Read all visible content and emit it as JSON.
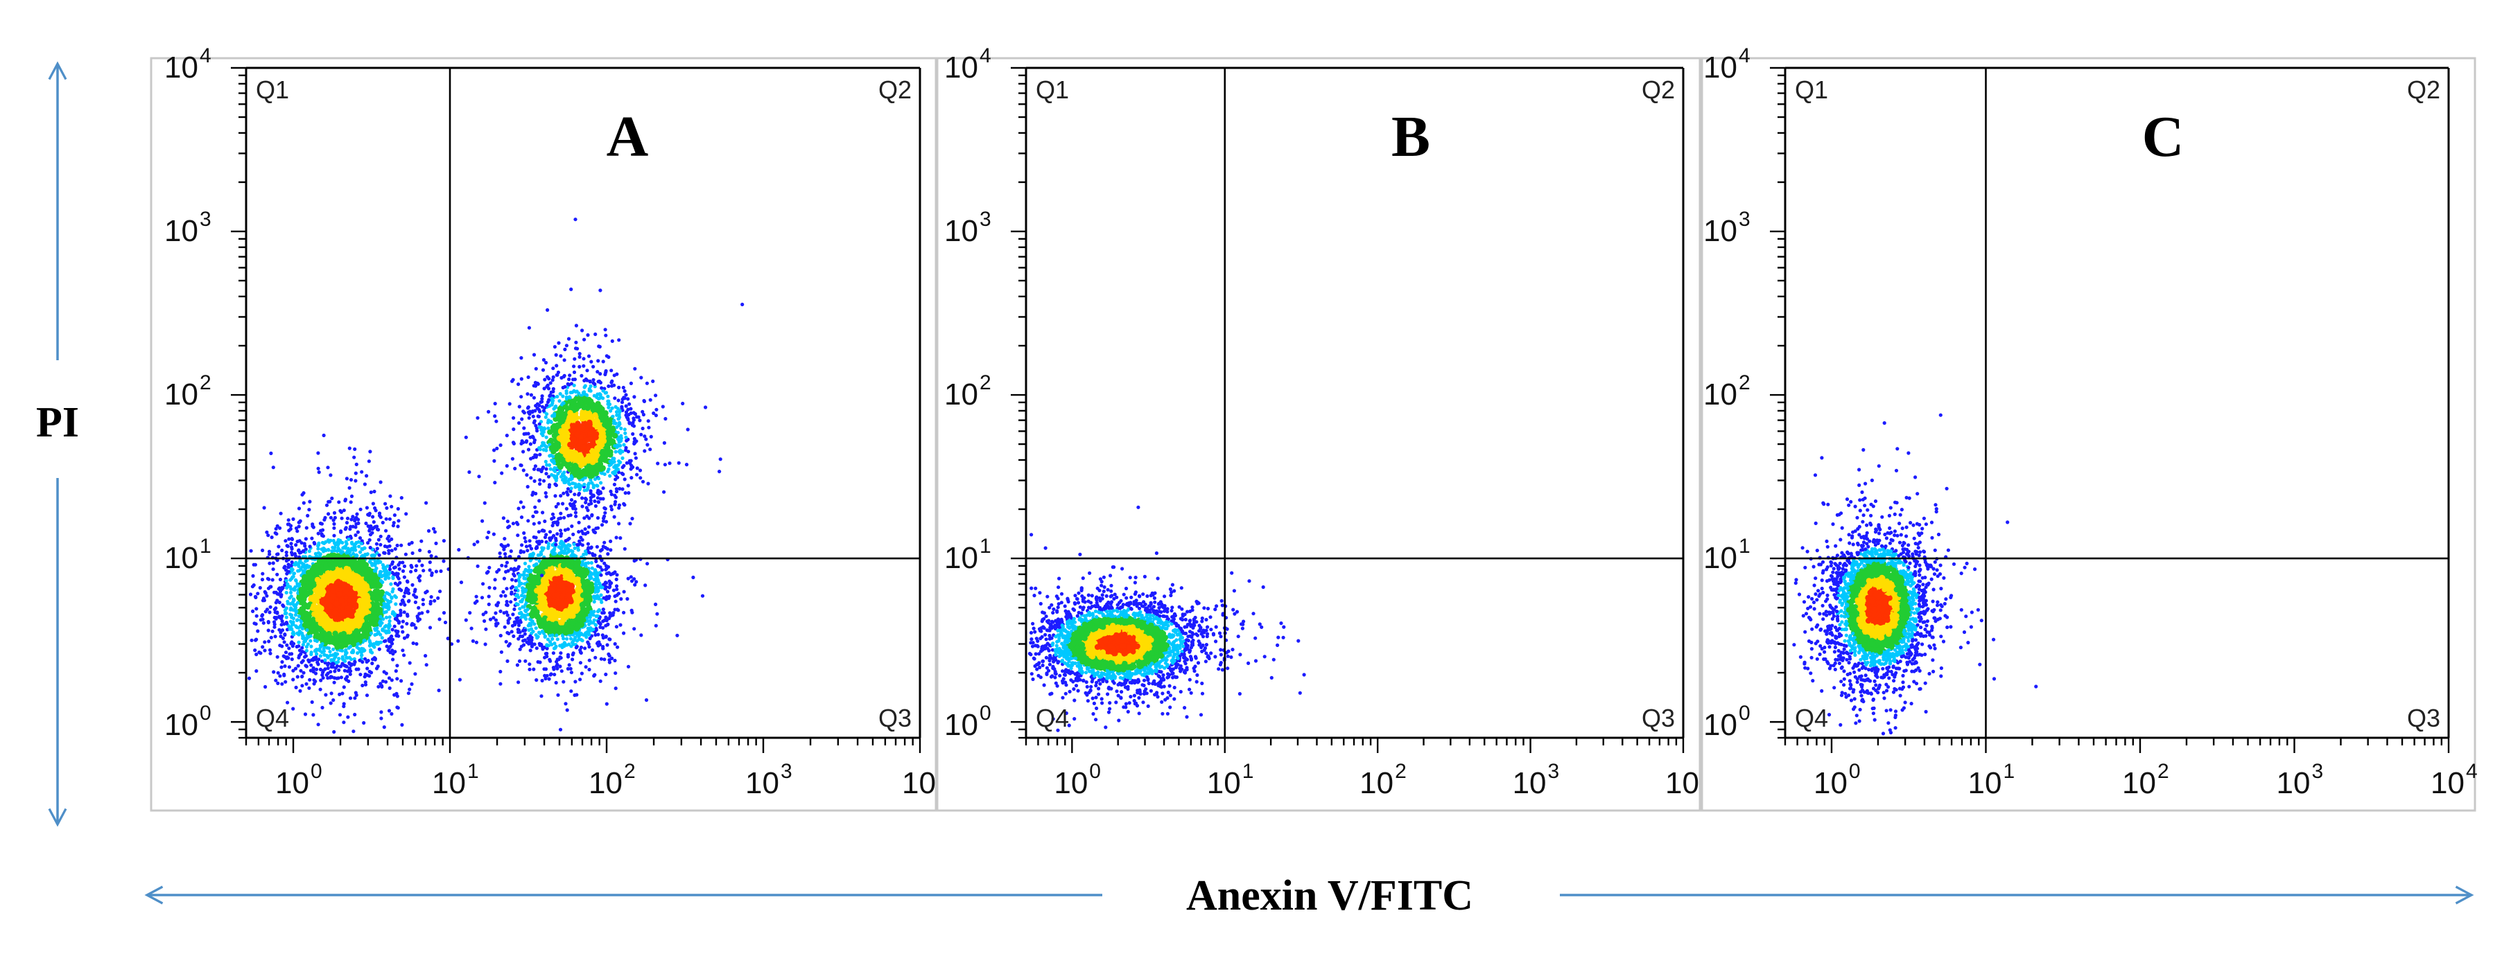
{
  "colors": {
    "arrow": "#4f8fc8",
    "axis": "#000000",
    "frame": "#c8c8c8",
    "density_low": "#1c1cff",
    "density_mid": "#00c8ff",
    "density_midhigh": "#22cc33",
    "density_high": "#ffdd00",
    "density_peak": "#ff3300"
  },
  "labels": {
    "y_title": "PI",
    "x_title": "Anexin V/FITC",
    "tick_base": "10",
    "tick_exponents": [
      "0",
      "1",
      "2",
      "3",
      "4"
    ],
    "quadrants": [
      "Q1",
      "Q2",
      "Q3",
      "Q4"
    ]
  },
  "chart_data": [
    {
      "type": "scatter",
      "panel": "A",
      "xlabel": "Anexin V/FITC",
      "ylabel": "PI",
      "scale": "log",
      "xlim": [
        0.5,
        10000
      ],
      "ylim": [
        0.8,
        10000
      ],
      "quadrant_gate": {
        "x": 10,
        "y": 10
      },
      "populations": [
        {
          "center": [
            2,
            5.5
          ],
          "spread_decades": [
            0.22,
            0.23
          ],
          "count": 2600
        },
        {
          "center": [
            50,
            6
          ],
          "spread_decades": [
            0.17,
            0.2
          ],
          "count": 1700
        },
        {
          "center": [
            70,
            55
          ],
          "spread_decades": [
            0.17,
            0.2
          ],
          "count": 1400
        }
      ]
    },
    {
      "type": "scatter",
      "panel": "B",
      "xlabel": "Anexin V/FITC",
      "ylabel": "PI",
      "scale": "log",
      "xlim": [
        0.5,
        10000
      ],
      "ylim": [
        0.8,
        10000
      ],
      "quadrant_gate": {
        "x": 10,
        "y": 10
      },
      "populations": [
        {
          "center": [
            2,
            3
          ],
          "spread_decades": [
            0.26,
            0.13
          ],
          "count": 2800
        }
      ]
    },
    {
      "type": "scatter",
      "panel": "C",
      "xlabel": "Anexin V/FITC",
      "ylabel": "PI",
      "scale": "log",
      "xlim": [
        0.5,
        10000
      ],
      "ylim": [
        0.8,
        10000
      ],
      "quadrant_gate": {
        "x": 10,
        "y": 10
      },
      "populations": [
        {
          "center": [
            2,
            5
          ],
          "spread_decades": [
            0.16,
            0.22
          ],
          "count": 2700
        }
      ]
    }
  ]
}
